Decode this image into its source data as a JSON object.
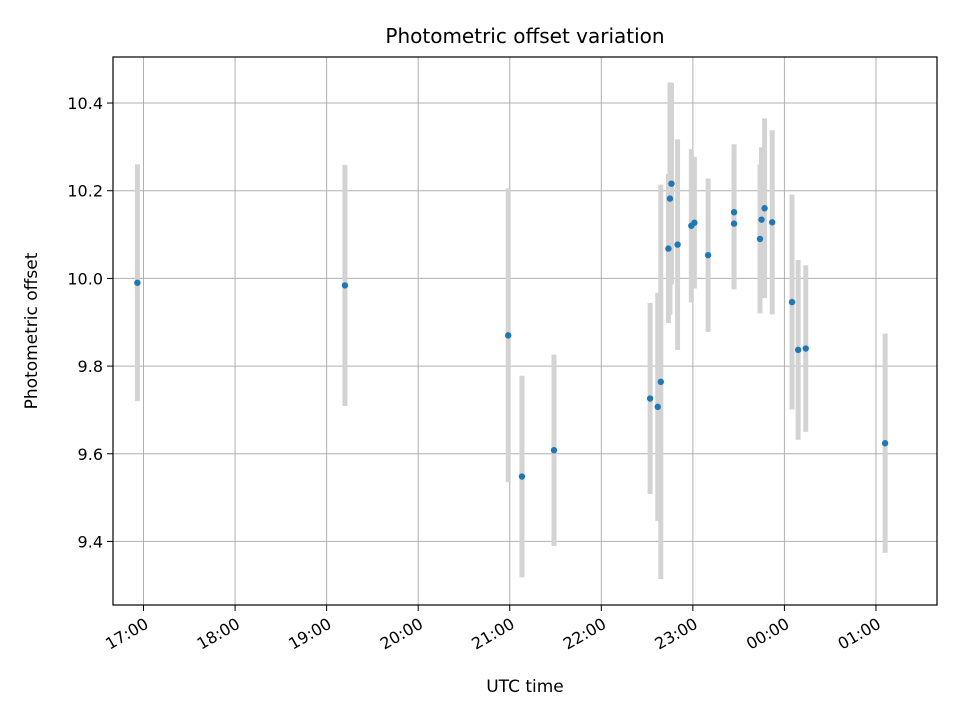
{
  "chart_data": {
    "type": "scatter",
    "title": "Photometric offset variation",
    "xlabel": "UTC time",
    "ylabel": "Photometric offset",
    "xlim": [
      "16:40",
      "25:40"
    ],
    "ylim": [
      9.255,
      10.505
    ],
    "grid": true,
    "x_ticks": [
      {
        "t": "17:00",
        "label": "17:00"
      },
      {
        "t": "18:00",
        "label": "18:00"
      },
      {
        "t": "19:00",
        "label": "19:00"
      },
      {
        "t": "20:00",
        "label": "20:00"
      },
      {
        "t": "21:00",
        "label": "21:00"
      },
      {
        "t": "22:00",
        "label": "22:00"
      },
      {
        "t": "23:00",
        "label": "23:00"
      },
      {
        "t": "24:00",
        "label": "00:00"
      },
      {
        "t": "25:00",
        "label": "01:00"
      }
    ],
    "y_ticks": [
      9.4,
      9.6,
      9.8,
      10.0,
      10.2,
      10.4
    ],
    "point_color": "#1f77b4",
    "errorbar_color": "#d3d3d3",
    "points": [
      {
        "t": "16:56",
        "y": 9.99,
        "err": 0.27
      },
      {
        "t": "19:12",
        "y": 9.984,
        "err": 0.275
      },
      {
        "t": "20:59",
        "y": 9.87,
        "err": 0.335
      },
      {
        "t": "21:08",
        "y": 9.548,
        "err": 0.23
      },
      {
        "t": "21:29",
        "y": 9.608,
        "err": 0.218
      },
      {
        "t": "22:32",
        "y": 9.726,
        "err": 0.218
      },
      {
        "t": "22:37",
        "y": 9.707,
        "err": 0.26
      },
      {
        "t": "22:39",
        "y": 9.764,
        "err": 0.45
      },
      {
        "t": "22:44",
        "y": 10.068,
        "err": 0.17
      },
      {
        "t": "22:45",
        "y": 10.182,
        "err": 0.265
      },
      {
        "t": "22:46",
        "y": 10.216,
        "err": 0.23
      },
      {
        "t": "22:50",
        "y": 10.077,
        "err": 0.24
      },
      {
        "t": "22:59",
        "y": 10.12,
        "err": 0.175
      },
      {
        "t": "23:01",
        "y": 10.127,
        "err": 0.15
      },
      {
        "t": "23:10",
        "y": 10.053,
        "err": 0.175
      },
      {
        "t": "23:27",
        "y": 10.125,
        "err": 0.15
      },
      {
        "t": "23:27",
        "y": 10.151,
        "err": 0.155
      },
      {
        "t": "23:44",
        "y": 10.09,
        "err": 0.17
      },
      {
        "t": "23:45",
        "y": 10.134,
        "err": 0.165
      },
      {
        "t": "23:47",
        "y": 10.16,
        "err": 0.205
      },
      {
        "t": "23:52",
        "y": 10.128,
        "err": 0.21
      },
      {
        "t": "24:05",
        "y": 9.946,
        "err": 0.245
      },
      {
        "t": "24:09",
        "y": 9.837,
        "err": 0.205
      },
      {
        "t": "24:14",
        "y": 9.84,
        "err": 0.19
      },
      {
        "t": "25:06",
        "y": 9.624,
        "err": 0.25
      }
    ]
  }
}
